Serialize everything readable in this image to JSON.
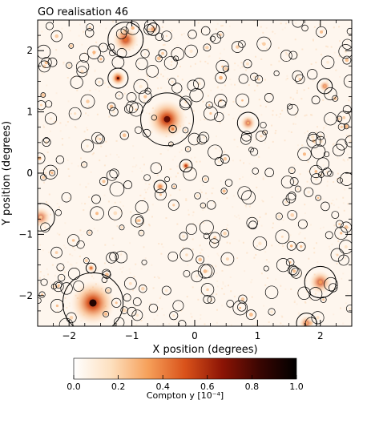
{
  "chart_data": {
    "type": "heatmap",
    "title": "GO realisation 46",
    "xlabel": "X position (degrees)",
    "ylabel": "Y position (degrees)",
    "xlim": [
      -2.5,
      2.5
    ],
    "ylim": [
      -2.5,
      2.5
    ],
    "xticks": [
      -2,
      -1,
      0,
      1,
      2
    ],
    "yticks": [
      -2,
      -1,
      0,
      1,
      2
    ],
    "xtick_labels": [
      "−2",
      "−1",
      "0",
      "1",
      "2"
    ],
    "ytick_labels": [
      "−2",
      "−1",
      "0",
      "1",
      "2"
    ],
    "colorbar": {
      "label": "Compton y [10⁻⁴]",
      "range": [
        0.0,
        1.0
      ],
      "ticks": [
        0.0,
        0.2,
        0.4,
        0.6,
        0.8,
        1.0
      ],
      "tick_labels": [
        "0.0",
        "0.2",
        "0.4",
        "0.6",
        "0.8",
        "1.0"
      ],
      "colors": [
        "#ffffff",
        "#fde0bf",
        "#f6a05a",
        "#d9521a",
        "#8c1405",
        "#3a0602",
        "#000000"
      ]
    },
    "clusters": [
      {
        "x": -1.62,
        "y": -2.12,
        "r": 0.48,
        "peak": 0.9
      },
      {
        "x": -0.44,
        "y": 0.88,
        "r": 0.42,
        "peak": 0.75
      },
      {
        "x": -1.1,
        "y": 2.18,
        "r": 0.28,
        "peak": 0.45
      },
      {
        "x": 2.0,
        "y": -1.78,
        "r": 0.25,
        "peak": 0.35
      },
      {
        "x": -1.22,
        "y": 1.55,
        "r": 0.16,
        "peak": 0.8
      },
      {
        "x": 0.85,
        "y": 0.82,
        "r": 0.17,
        "peak": 0.3
      },
      {
        "x": -2.45,
        "y": -0.72,
        "r": 0.22,
        "peak": 0.25
      },
      {
        "x": 1.78,
        "y": -2.45,
        "r": 0.16,
        "peak": 0.3
      },
      {
        "x": -0.14,
        "y": 0.12,
        "r": 0.1,
        "peak": 0.55
      },
      {
        "x": -0.55,
        "y": -0.22,
        "r": 0.1,
        "peak": 0.35
      },
      {
        "x": 2.07,
        "y": 1.42,
        "r": 0.12,
        "peak": 0.3
      },
      {
        "x": -0.66,
        "y": 2.35,
        "r": 0.1,
        "peak": 0.3
      },
      {
        "x": -1.65,
        "y": -1.55,
        "r": 0.08,
        "peak": 0.4
      },
      {
        "x": -0.35,
        "y": 0.72,
        "r": 0.06,
        "peak": 0.4
      }
    ]
  }
}
